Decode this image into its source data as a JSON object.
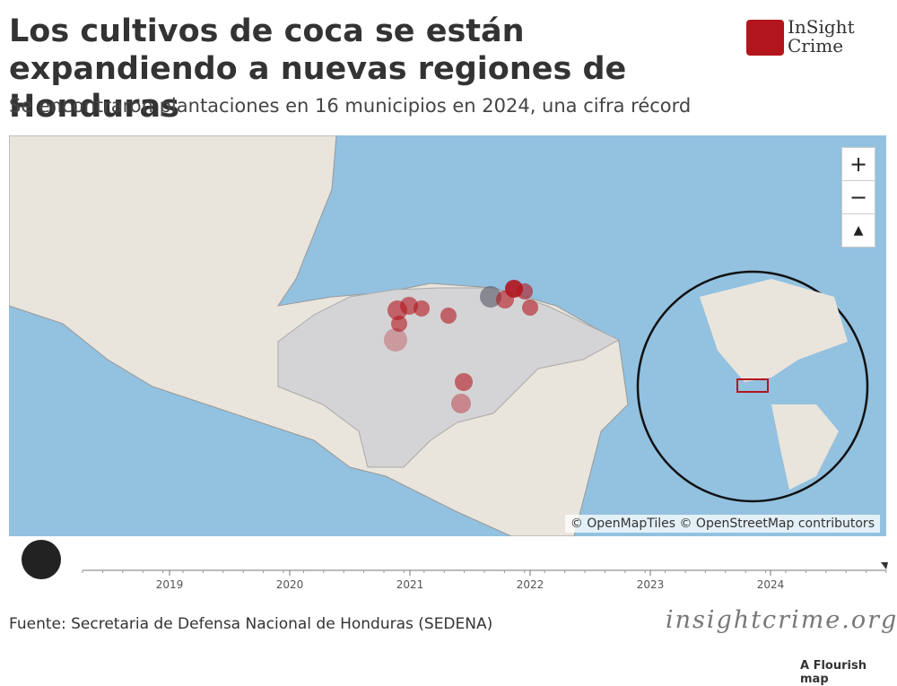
{
  "header": {
    "title": "Los cultivos de coca se están expandiendo a nuevas regiones de Honduras",
    "subtitle": "Se encontraron plantaciones en 16 municipios en 2024, una cifra récord"
  },
  "logo": {
    "line1": "InSight",
    "line2": "Crime"
  },
  "map": {
    "attribution": "© OpenMapTiles © OpenStreetMap contributors",
    "zoom_in": "+",
    "zoom_out": "−"
  },
  "timeline": {
    "years": [
      "2019",
      "2020",
      "2021",
      "2022",
      "2023",
      "2024"
    ]
  },
  "footer": {
    "source": "Fuente: Secretaria de Defensa Nacional de Honduras (SEDENA)",
    "site": "insightcrime.org",
    "credit": "A Flourish map"
  }
}
